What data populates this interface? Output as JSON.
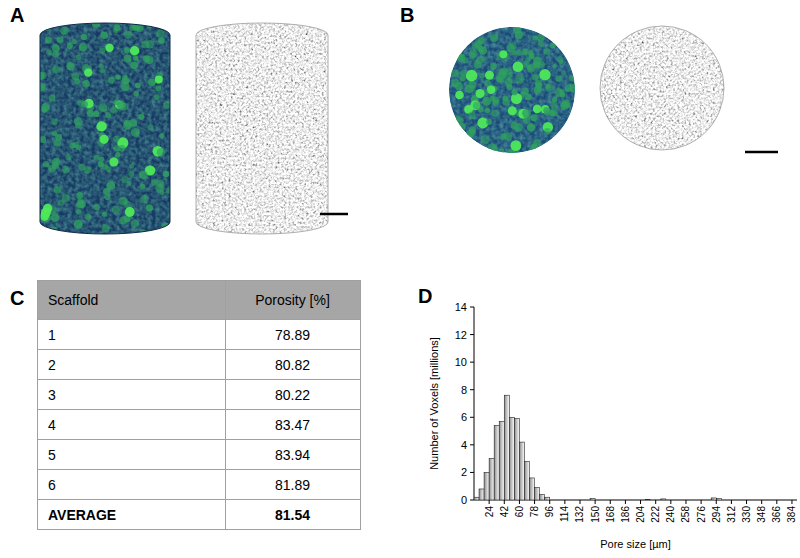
{
  "panel_labels": [
    "A",
    "B",
    "C",
    "D"
  ],
  "table": {
    "header": [
      "Scaffold",
      "Porosity [%]"
    ],
    "rows": [
      [
        1,
        78.89
      ],
      [
        2,
        80.82
      ],
      [
        3,
        80.22
      ],
      [
        4,
        83.47
      ],
      [
        5,
        83.94
      ],
      [
        6,
        81.89
      ]
    ],
    "summary": [
      "AVERAGE",
      81.54
    ]
  },
  "chart_data": {
    "type": "histogram",
    "xlabel": "Pore size [µm]",
    "ylabel": "Number of Voxels [millions]",
    "bins": [
      6,
      12,
      18,
      24,
      30,
      36,
      42,
      48,
      54,
      60,
      66,
      72,
      78,
      84,
      90,
      96,
      144,
      150,
      210,
      216,
      228,
      234,
      288,
      294,
      300,
      390
    ],
    "values": [
      0.2,
      0.8,
      2.0,
      3.0,
      5.4,
      5.7,
      7.6,
      6.0,
      5.9,
      4.2,
      2.8,
      1.6,
      0.9,
      0.4,
      0.2,
      0,
      0.1,
      0,
      0.05,
      0,
      0.08,
      0,
      0.15,
      0.1,
      0
    ],
    "color": "#8c8c8c",
    "xlim": [
      6,
      390
    ],
    "ylim": [
      0,
      14
    ],
    "xticks": [
      24,
      42,
      60,
      78,
      96,
      114,
      132,
      150,
      168,
      186,
      204,
      222,
      240,
      258,
      276,
      294,
      312,
      330,
      348,
      366,
      384
    ],
    "yticks": [
      0,
      2,
      4,
      6,
      8,
      10,
      12,
      14
    ],
    "grid": false
  }
}
